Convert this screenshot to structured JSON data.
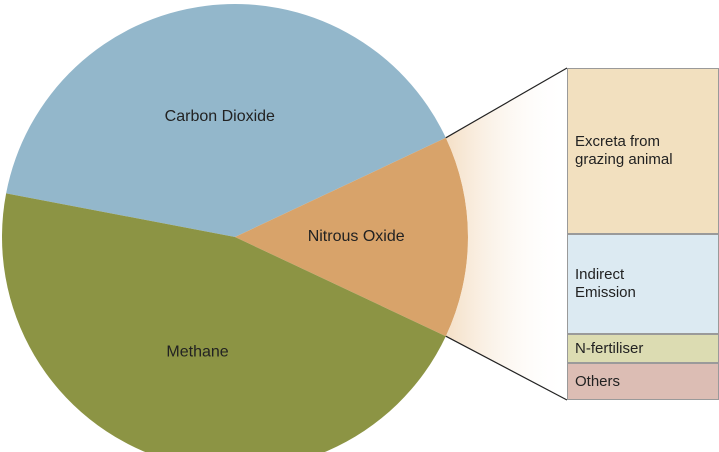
{
  "chart_data": {
    "type": "pie-of-bar",
    "categories": [
      "Carbon Dioxide",
      "Nitrous Oxide",
      "Methane"
    ],
    "values": [
      40,
      14,
      46
    ],
    "colors": [
      "#93b7cb",
      "#d8a36a",
      "#8c9444"
    ],
    "breakdown": {
      "of": "Nitrous Oxide",
      "categories": [
        "Excreta from grazing animal",
        "Indirect Emission",
        "N-fertiliser",
        "Others"
      ],
      "values": [
        50,
        30,
        9,
        11
      ],
      "colors": [
        "#f2e0bf",
        "#dceaf2",
        "#dcdcb2",
        "#dcbdb4"
      ]
    }
  }
}
